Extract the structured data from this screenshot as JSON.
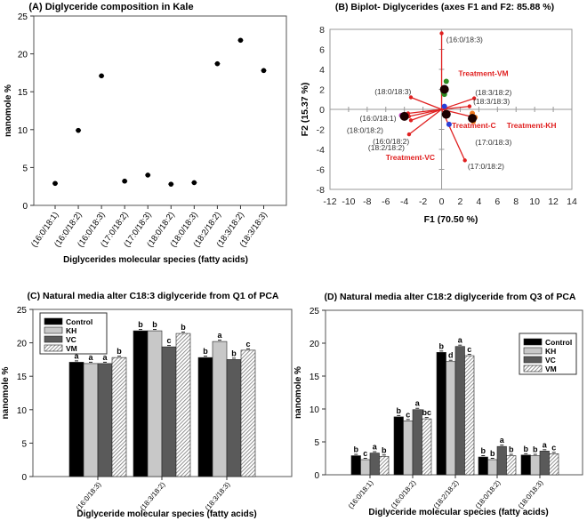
{
  "chart_data": [
    {
      "id": "A",
      "type": "scatter",
      "title": "(A) Diglyceride composition in Kale",
      "xlabel": "Diglycerides molecular species (fatty acids)",
      "ylabel": "nanomole %",
      "ylim": [
        0,
        25
      ],
      "yticks": [
        0,
        5,
        10,
        15,
        20,
        25
      ],
      "categories": [
        "(16:0/18:1)",
        "(16:0/18:2)",
        "(16:0/18:3)",
        "(17:0/18:2)",
        "(17:0/18:3)",
        "(18:0/18:2)",
        "(18:0/18:3)",
        "(18:2/18:2)",
        "(18:3/18:2)",
        "(18:3/18:3)"
      ],
      "values": [
        2.9,
        9.9,
        17.1,
        3.2,
        4.0,
        2.8,
        3.0,
        18.7,
        21.8,
        17.8
      ]
    },
    {
      "id": "B",
      "type": "scatter",
      "title": "(B) Biplot- Diglycerides (axes F1 and F2: 85.88 %)",
      "xlabel": "F1 (70.50 %)",
      "ylabel": "F2 (15.37 %)",
      "xlim": [
        -12,
        14
      ],
      "ylim": [
        -8,
        8
      ],
      "xticks": [
        -12,
        -10,
        -8,
        -6,
        -4,
        -2,
        0,
        2,
        4,
        6,
        8,
        10,
        12,
        14
      ],
      "yticks": [
        -8,
        -6,
        -4,
        -2,
        0,
        2,
        4,
        6,
        8
      ],
      "vectors": [
        {
          "label": "(16:0/18:3)",
          "x": 0,
          "y": 7.6,
          "lx": 0.5,
          "ly": 7.0
        },
        {
          "label": "(18:0/18:3)",
          "x": -3.3,
          "y": 1.2,
          "lx": -7.2,
          "ly": 1.8
        },
        {
          "label": "(18:3/18:2)",
          "x": 3.5,
          "y": 1.1,
          "lx": 3.6,
          "ly": 1.7
        },
        {
          "label": "(18:3/18:3)",
          "x": 3.0,
          "y": 0.3,
          "lx": 3.4,
          "ly": 0.8
        },
        {
          "label": "(16:0/18:1)",
          "x": -3.6,
          "y": -0.4,
          "lx": -8.8,
          "ly": -0.9
        },
        {
          "label": "(18:0/18:2)",
          "x": -3.5,
          "y": -0.7,
          "lx": -10.2,
          "ly": -2.1
        },
        {
          "label": "(16:0/18:2)",
          "x": -3.3,
          "y": -1.1,
          "lx": -7.4,
          "ly": -3.2
        },
        {
          "label": "(18:2/18:2)",
          "x": -3.5,
          "y": -2.5,
          "lx": -7.9,
          "ly": -3.8
        },
        {
          "label": "(17:0/18:3)",
          "x": 3.5,
          "y": -0.8,
          "lx": 3.6,
          "ly": -3.3
        },
        {
          "label": "(17:0/18:2)",
          "x": 2.5,
          "y": -5.1,
          "lx": 2.8,
          "ly": -5.7
        }
      ],
      "observations": [
        {
          "x": 0.5,
          "y": 2.8,
          "color": "#2e8b22",
          "r": 3
        },
        {
          "x": 0.2,
          "y": 1.7,
          "color": "#2e8b22",
          "r": 3
        },
        {
          "x": 0.3,
          "y": 1.5,
          "color": "#2e8b22",
          "r": 3
        },
        {
          "x": 0.3,
          "y": 2.0,
          "color": "#1a0000",
          "r": 5
        },
        {
          "x": 0.3,
          "y": 0.3,
          "color": "#2a3fd8",
          "r": 3
        },
        {
          "x": 0.8,
          "y": -1.5,
          "color": "#2a3fd8",
          "r": 3
        },
        {
          "x": 0.5,
          "y": -0.5,
          "color": "#1a0000",
          "r": 5
        },
        {
          "x": 3.3,
          "y": -0.4,
          "color": "#f07a20",
          "r": 3
        },
        {
          "x": 3.4,
          "y": -1.2,
          "color": "#f07a20",
          "r": 3
        },
        {
          "x": 3.6,
          "y": -0.8,
          "color": "#f07a20",
          "r": 3
        },
        {
          "x": 3.3,
          "y": -0.9,
          "color": "#1a0000",
          "r": 5
        },
        {
          "x": -4.3,
          "y": -0.6,
          "color": "#c040c0",
          "r": 3
        },
        {
          "x": -4.0,
          "y": -0.7,
          "color": "#1a0000",
          "r": 5
        }
      ],
      "treatments": [
        {
          "label": "Treatment-VM",
          "x": 1.8,
          "y": 3.6
        },
        {
          "label": "Treatment-C",
          "x": 1.1,
          "y": -1.6
        },
        {
          "label": "Treatment-KH",
          "x": 7.0,
          "y": -1.6
        },
        {
          "label": "Treatment-VC",
          "x": -6.0,
          "y": -4.8
        }
      ]
    },
    {
      "id": "C",
      "type": "bar",
      "title": "(C) Natural media alter C18:3 diglyceride from Q1 of PCA",
      "xlabel": "Diglyceride molecular species (fatty acids)",
      "ylabel": "nanomole %",
      "ylim": [
        0,
        25
      ],
      "yticks": [
        0,
        5,
        10,
        15,
        20,
        25
      ],
      "legend": "top-left",
      "categories": [
        "(16:0/18:3)",
        "(18:3/18:2)",
        "(18:3/18:3)"
      ],
      "series": [
        {
          "name": "Control",
          "values": [
            17.1,
            21.8,
            17.8
          ],
          "letters": [
            "a",
            "b",
            "b"
          ]
        },
        {
          "name": "KH",
          "values": [
            16.9,
            21.8,
            20.2
          ],
          "letters": [
            "a",
            "b",
            "a"
          ]
        },
        {
          "name": "VC",
          "values": [
            16.9,
            19.4,
            17.5
          ],
          "letters": [
            "a",
            "c",
            "b"
          ]
        },
        {
          "name": "VM",
          "values": [
            17.8,
            21.4,
            18.9
          ],
          "letters": [
            "b",
            "b",
            "c"
          ]
        }
      ]
    },
    {
      "id": "D",
      "type": "bar",
      "title": "(D) Natural media alter C18:2 diglyceride from Q3 of PCA",
      "xlabel": "Diglyceride molecular species (fatty acids)",
      "ylabel": "nanomole %",
      "ylim": [
        0,
        25
      ],
      "yticks": [
        0,
        5,
        10,
        15,
        20,
        25
      ],
      "legend": "top-right",
      "categories": [
        "(16:0/18:1)",
        "(16:0/18:2)",
        "(18:2/18:2)",
        "(18:0/18:2)",
        "(18:0/18:3)"
      ],
      "series": [
        {
          "name": "Control",
          "values": [
            2.9,
            8.8,
            18.6,
            2.7,
            3.0
          ],
          "letters": [
            "b",
            "b",
            "b",
            "b",
            "b"
          ]
        },
        {
          "name": "KH",
          "values": [
            2.3,
            8.2,
            17.2,
            2.3,
            2.9
          ],
          "letters": [
            "c",
            "c",
            "d",
            "b",
            "b"
          ]
        },
        {
          "name": "VC",
          "values": [
            3.3,
            9.9,
            19.5,
            4.3,
            3.6
          ],
          "letters": [
            "a",
            "a",
            "a",
            "a",
            "a"
          ]
        },
        {
          "name": "VM",
          "values": [
            2.8,
            8.5,
            18.1,
            2.9,
            3.2
          ],
          "letters": [
            "b",
            "bc",
            "c",
            "b",
            "c"
          ]
        }
      ]
    }
  ],
  "colors": {
    "control": "#000000",
    "kh": "#c8c8c8",
    "vc": "#5a5a5a",
    "vm_hatch": "#888888",
    "vector": "#e02020",
    "treatment": "#e02020"
  }
}
